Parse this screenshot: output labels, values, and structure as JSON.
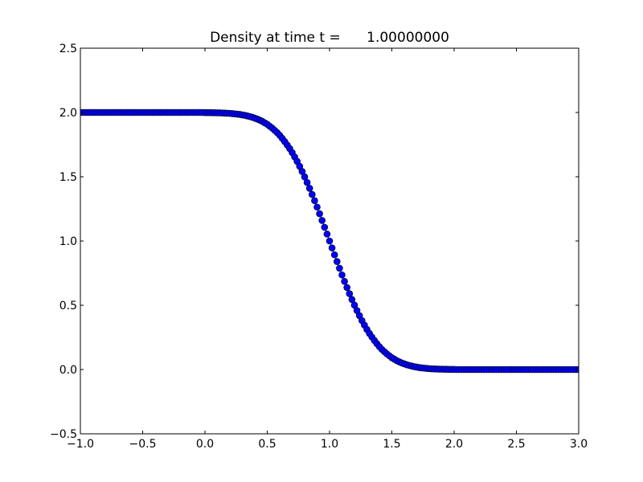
{
  "chart_data": {
    "type": "scatter",
    "title": "Density at time t =      1.00000000",
    "xlabel": "",
    "ylabel": "",
    "xlim": [
      -1.0,
      3.0
    ],
    "ylim": [
      -0.5,
      2.5
    ],
    "grid": false,
    "marker_color": "#0000ff",
    "marker_edge_color": "#000000",
    "x_ticks": [
      "−1.0",
      "−0.5",
      "0.0",
      "0.5",
      "1.0",
      "1.5",
      "2.0",
      "2.5",
      "3.0"
    ],
    "x_tick_values": [
      -1.0,
      -0.5,
      0.0,
      0.5,
      1.0,
      1.5,
      2.0,
      2.5,
      3.0
    ],
    "y_ticks": [
      "−0.5",
      "0.0",
      "0.5",
      "1.0",
      "1.5",
      "2.0",
      "2.5"
    ],
    "y_tick_values": [
      -0.5,
      0.0,
      0.5,
      1.0,
      1.5,
      2.0,
      2.5
    ],
    "x": {
      "start": -1.0,
      "stop": 3.0,
      "step": 0.02
    },
    "y": [
      2.0,
      2.0,
      2.0,
      2.0,
      2.0,
      2.0,
      2.0,
      2.0,
      2.0,
      2.0,
      2.0,
      2.0,
      2.0,
      2.0,
      2.0,
      2.0,
      2.0,
      2.0,
      2.0,
      2.0,
      2.0,
      2.0,
      2.0,
      2.0,
      2.0,
      2.0,
      2.0,
      2.0,
      2.0,
      2.0,
      2.0,
      2.0,
      2.0,
      2.0,
      2.0,
      2.0,
      2.0,
      2.0,
      2.0,
      2.0,
      2.0,
      2.0,
      2.0,
      2.0,
      2.0,
      2.0,
      2.0,
      2.0,
      2.0,
      2.0,
      1.999,
      1.999,
      1.999,
      1.998,
      1.998,
      1.997,
      1.997,
      1.996,
      1.995,
      1.994,
      1.993,
      1.991,
      1.989,
      1.987,
      1.985,
      1.981,
      1.978,
      1.973,
      1.968,
      1.963,
      1.956,
      1.949,
      1.94,
      1.931,
      1.919,
      1.908,
      1.893,
      1.878,
      1.861,
      1.843,
      1.822,
      1.799,
      1.774,
      1.747,
      1.719,
      1.688,
      1.654,
      1.619,
      1.581,
      1.541,
      1.499,
      1.455,
      1.41,
      1.362,
      1.314,
      1.264,
      1.212,
      1.16,
      1.107,
      1.054,
      1.0,
      0.946,
      0.893,
      0.84,
      0.788,
      0.736,
      0.686,
      0.638,
      0.59,
      0.545,
      0.501,
      0.459,
      0.419,
      0.381,
      0.346,
      0.312,
      0.281,
      0.253,
      0.226,
      0.201,
      0.178,
      0.157,
      0.139,
      0.122,
      0.107,
      0.092,
      0.081,
      0.069,
      0.06,
      0.051,
      0.044,
      0.037,
      0.032,
      0.027,
      0.022,
      0.019,
      0.015,
      0.013,
      0.011,
      0.009,
      0.007,
      0.006,
      0.005,
      0.004,
      0.003,
      0.003,
      0.002,
      0.002,
      0.001,
      0.001,
      0.001,
      0,
      0,
      0,
      0,
      0,
      0,
      0,
      0,
      0,
      0,
      0,
      0,
      0,
      0,
      0,
      0,
      0,
      0,
      0,
      0,
      0,
      0,
      0,
      0,
      0,
      0,
      0,
      0,
      0,
      0,
      0,
      0,
      0,
      0,
      0,
      0,
      0,
      0,
      0,
      0,
      0,
      0,
      0,
      0,
      0,
      0,
      0,
      0,
      0,
      0
    ]
  }
}
